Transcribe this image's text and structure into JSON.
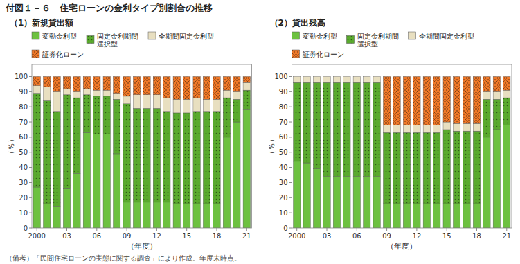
{
  "chart_data": [
    {
      "type": "bar",
      "stacked": true,
      "title": "付図１－６　住宅ローンの金利タイプ別割合の推移",
      "subtitle": "（1）新規貸出額",
      "footer": "（備考）「民間住宅ローンの実態に関する調査」により作成。年度末時点。",
      "xlabel": "（年度）",
      "ylabel": "（％）",
      "legend": "top",
      "grid": false,
      "categories": [
        "2000",
        null,
        null,
        "03",
        null,
        null,
        "06",
        null,
        null,
        "09",
        null,
        null,
        "12",
        null,
        null,
        "15",
        null,
        null,
        "18",
        null,
        null,
        "21"
      ],
      "ylim": [
        0,
        108
      ],
      "yticks": [
        0,
        10,
        20,
        30,
        40,
        50,
        60,
        70,
        80,
        90,
        100
      ],
      "series": [
        {
          "name": "変動金利型",
          "color": "#6dc140",
          "values": [
            27,
            16,
            14,
            26,
            36,
            63,
            62,
            62,
            49,
            17,
            17,
            17,
            17,
            17,
            16,
            16,
            16,
            16,
            16,
            60,
            70,
            78
          ]
        },
        {
          "name": "固定金利期間\n選択型",
          "color": "#5aaa2e",
          "values": [
            62,
            68,
            63,
            62,
            50,
            25,
            25,
            25,
            36,
            65,
            62,
            62,
            62,
            60,
            60,
            60,
            61,
            61,
            61,
            26,
            15,
            13
          ]
        },
        {
          "name": "全期間固定金利型",
          "color": "#e8dfc0",
          "values": [
            5,
            9,
            13,
            4,
            4,
            4,
            4,
            4,
            4,
            5,
            9,
            9,
            9,
            9,
            9,
            9,
            9,
            8,
            8,
            5,
            5,
            5
          ]
        },
        {
          "name": "証券化ローン",
          "color": "#f07828",
          "values": [
            6,
            7,
            10,
            8,
            10,
            8,
            9,
            9,
            11,
            13,
            12,
            12,
            12,
            14,
            15,
            15,
            14,
            15,
            15,
            9,
            10,
            4
          ]
        }
      ]
    },
    {
      "type": "bar",
      "stacked": true,
      "subtitle": "（2）貸出残高",
      "xlabel": "（年度）",
      "ylabel": "（％）",
      "legend": "top",
      "grid": false,
      "categories": [
        "2000",
        null,
        null,
        "03",
        null,
        null,
        "06",
        null,
        null,
        "09",
        null,
        null,
        "12",
        null,
        null,
        "15",
        null,
        null,
        "18",
        null,
        null,
        "21"
      ],
      "ylim": [
        0,
        108
      ],
      "yticks": [
        0,
        10,
        20,
        30,
        40,
        50,
        60,
        70,
        80,
        90,
        100
      ],
      "series": [
        {
          "name": "変動金利型",
          "color": "#6dc140",
          "values": [
            44,
            43,
            39,
            34,
            34,
            34,
            34,
            34,
            34,
            16,
            16,
            16,
            16,
            16,
            16,
            16,
            16,
            16,
            16,
            60,
            65,
            68
          ]
        },
        {
          "name": "固定金利期間\n選択型",
          "color": "#5aaa2e",
          "values": [
            52,
            53,
            57,
            62,
            62,
            62,
            62,
            62,
            62,
            47,
            47,
            47,
            47,
            47,
            47,
            49,
            48,
            48,
            48,
            25,
            20,
            18
          ]
        },
        {
          "name": "全期間固定金利型",
          "color": "#e8dfc0",
          "values": [
            4,
            4,
            4,
            4,
            4,
            4,
            4,
            4,
            4,
            5,
            5,
            5,
            5,
            5,
            5,
            5,
            5,
            5,
            5,
            5,
            5,
            5
          ]
        },
        {
          "name": "証券化ローン",
          "color": "#f07828",
          "values": [
            0,
            0,
            0,
            0,
            0,
            0,
            0,
            0,
            0,
            32,
            32,
            32,
            32,
            32,
            32,
            30,
            31,
            31,
            31,
            10,
            10,
            9
          ]
        }
      ]
    }
  ]
}
